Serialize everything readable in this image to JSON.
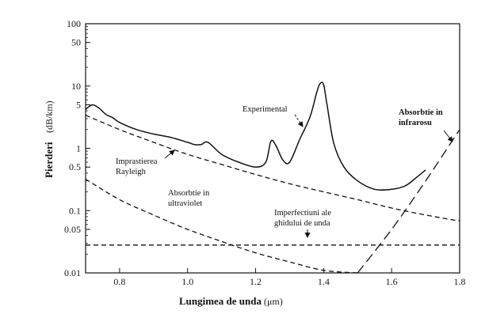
{
  "chart_data": {
    "type": "line",
    "title": "",
    "xlabel": "Lungimea de unda",
    "xunit": "(μm)",
    "ylabel": "Pierderi",
    "yunit": "(dB/km)",
    "xlim": [
      0.7,
      1.8
    ],
    "ylim": [
      0.01,
      100
    ],
    "yscale": "log",
    "grid": false,
    "xticks": [
      "0.8",
      "1.0",
      "1.2",
      "1.4",
      "1.6",
      "1.8"
    ],
    "xtick_values": [
      0.8,
      1.0,
      1.2,
      1.4,
      1.6,
      1.8
    ],
    "yticks": [
      "100",
      "50",
      "10",
      "5",
      "1",
      "0.5",
      "0.1",
      "0.05",
      "0.01"
    ],
    "ytick_values": [
      100,
      50,
      10,
      5,
      1,
      0.5,
      0.1,
      0.05,
      0.01
    ],
    "series": [
      {
        "name": "Experimental",
        "style": "solid",
        "x": [
          0.7,
          0.72,
          0.74,
          0.76,
          0.78,
          0.8,
          0.85,
          0.9,
          0.95,
          1.0,
          1.02,
          1.04,
          1.06,
          1.1,
          1.15,
          1.2,
          1.23,
          1.245,
          1.26,
          1.28,
          1.3,
          1.33,
          1.36,
          1.38,
          1.39,
          1.4,
          1.41,
          1.43,
          1.46,
          1.5,
          1.55,
          1.6,
          1.64,
          1.67,
          1.7
        ],
        "y": [
          4.2,
          5.0,
          4.4,
          3.5,
          3.1,
          2.6,
          2.0,
          1.7,
          1.5,
          1.25,
          1.15,
          1.15,
          1.25,
          0.8,
          0.6,
          0.5,
          0.6,
          1.3,
          1.1,
          0.65,
          0.6,
          1.4,
          3.2,
          8.0,
          11.0,
          10.5,
          5.0,
          1.2,
          0.5,
          0.3,
          0.22,
          0.22,
          0.25,
          0.33,
          0.45
        ]
      },
      {
        "name": "Imprastierea Rayleigh",
        "style": "dashed",
        "x": [
          0.7,
          0.8,
          0.9,
          1.0,
          1.1,
          1.2,
          1.3,
          1.4,
          1.5,
          1.6,
          1.7,
          1.8
        ],
        "y": [
          3.4,
          2.0,
          1.25,
          0.8,
          0.55,
          0.38,
          0.27,
          0.2,
          0.15,
          0.11,
          0.085,
          0.068
        ]
      },
      {
        "name": "Absorbtie in ultraviolet",
        "style": "dashed",
        "x": [
          0.7,
          0.8,
          0.9,
          1.0,
          1.1,
          1.2,
          1.3,
          1.4,
          1.5
        ],
        "y": [
          0.32,
          0.15,
          0.085,
          0.05,
          0.032,
          0.021,
          0.015,
          0.011,
          0.009
        ]
      },
      {
        "name": "Imperfectiuni ale ghidului de unda",
        "style": "dashed",
        "x": [
          0.7,
          1.8
        ],
        "y": [
          0.028,
          0.028
        ]
      },
      {
        "name": "Absorbtie in infrarosu",
        "style": "dashed",
        "x": [
          1.5,
          1.6,
          1.7,
          1.8
        ],
        "y": [
          0.008,
          0.05,
          0.3,
          2.0
        ]
      }
    ],
    "annotations": {
      "experimental": "Experimental",
      "rayleigh_line1": "Imprastierea",
      "rayleigh_line2": "Rayleigh",
      "uv_line1": "Absorbtie in",
      "uv_line2": "ultraviolet",
      "imperf_line1": "Imperfectiuni ale",
      "imperf_line2": "ghidului de unda",
      "ir_line1": "Absorbtie in",
      "ir_line2": "infrarosu"
    }
  }
}
